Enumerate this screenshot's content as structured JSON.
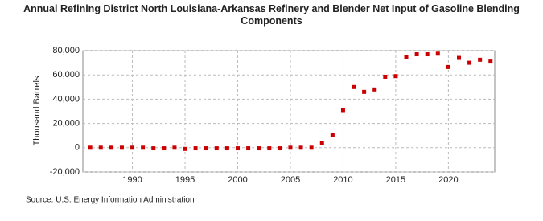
{
  "chart_data": {
    "type": "scatter",
    "title": "Annual Refining District North Louisiana-Arkansas Refinery and Blender Net Input of Gasoline Blending Components",
    "y_label": "Thousand Barrels",
    "source": "Source: U.S. Energy Information Administration",
    "x": [
      1986,
      1987,
      1988,
      1989,
      1990,
      1991,
      1992,
      1993,
      1994,
      1995,
      1996,
      1997,
      1998,
      1999,
      2000,
      2001,
      2002,
      2003,
      2004,
      2005,
      2006,
      2007,
      2008,
      2009,
      2010,
      2011,
      2012,
      2013,
      2014,
      2015,
      2016,
      2017,
      2018,
      2019,
      2020,
      2021,
      2022,
      2023,
      2024
    ],
    "series": [
      {
        "name": "Net Input",
        "color": "#cc0000",
        "values": [
          0,
          0,
          0,
          0,
          0,
          0,
          -500,
          -500,
          0,
          -1000,
          -500,
          -500,
          -500,
          -500,
          -500,
          -500,
          -500,
          -500,
          -500,
          0,
          0,
          0,
          4000,
          10500,
          31000,
          50000,
          46000,
          48000,
          58500,
          59000,
          74500,
          77000,
          77000,
          77500,
          66500,
          74000,
          70000,
          72500,
          71000
        ]
      }
    ],
    "xlim": [
      1985.3,
      2024.4
    ],
    "xticks": [
      1990,
      1995,
      2000,
      2005,
      2010,
      2015,
      2020
    ],
    "ylim": [
      -20000,
      80000
    ],
    "yticks": [
      {
        "value": -20000,
        "label": "-20,000"
      },
      0,
      {
        "value": 20000,
        "label": "20,000"
      },
      {
        "value": 40000,
        "label": "40,000"
      },
      {
        "value": 60000,
        "label": "60,000"
      },
      {
        "value": 80000,
        "label": "80,000"
      }
    ],
    "grid": true
  }
}
